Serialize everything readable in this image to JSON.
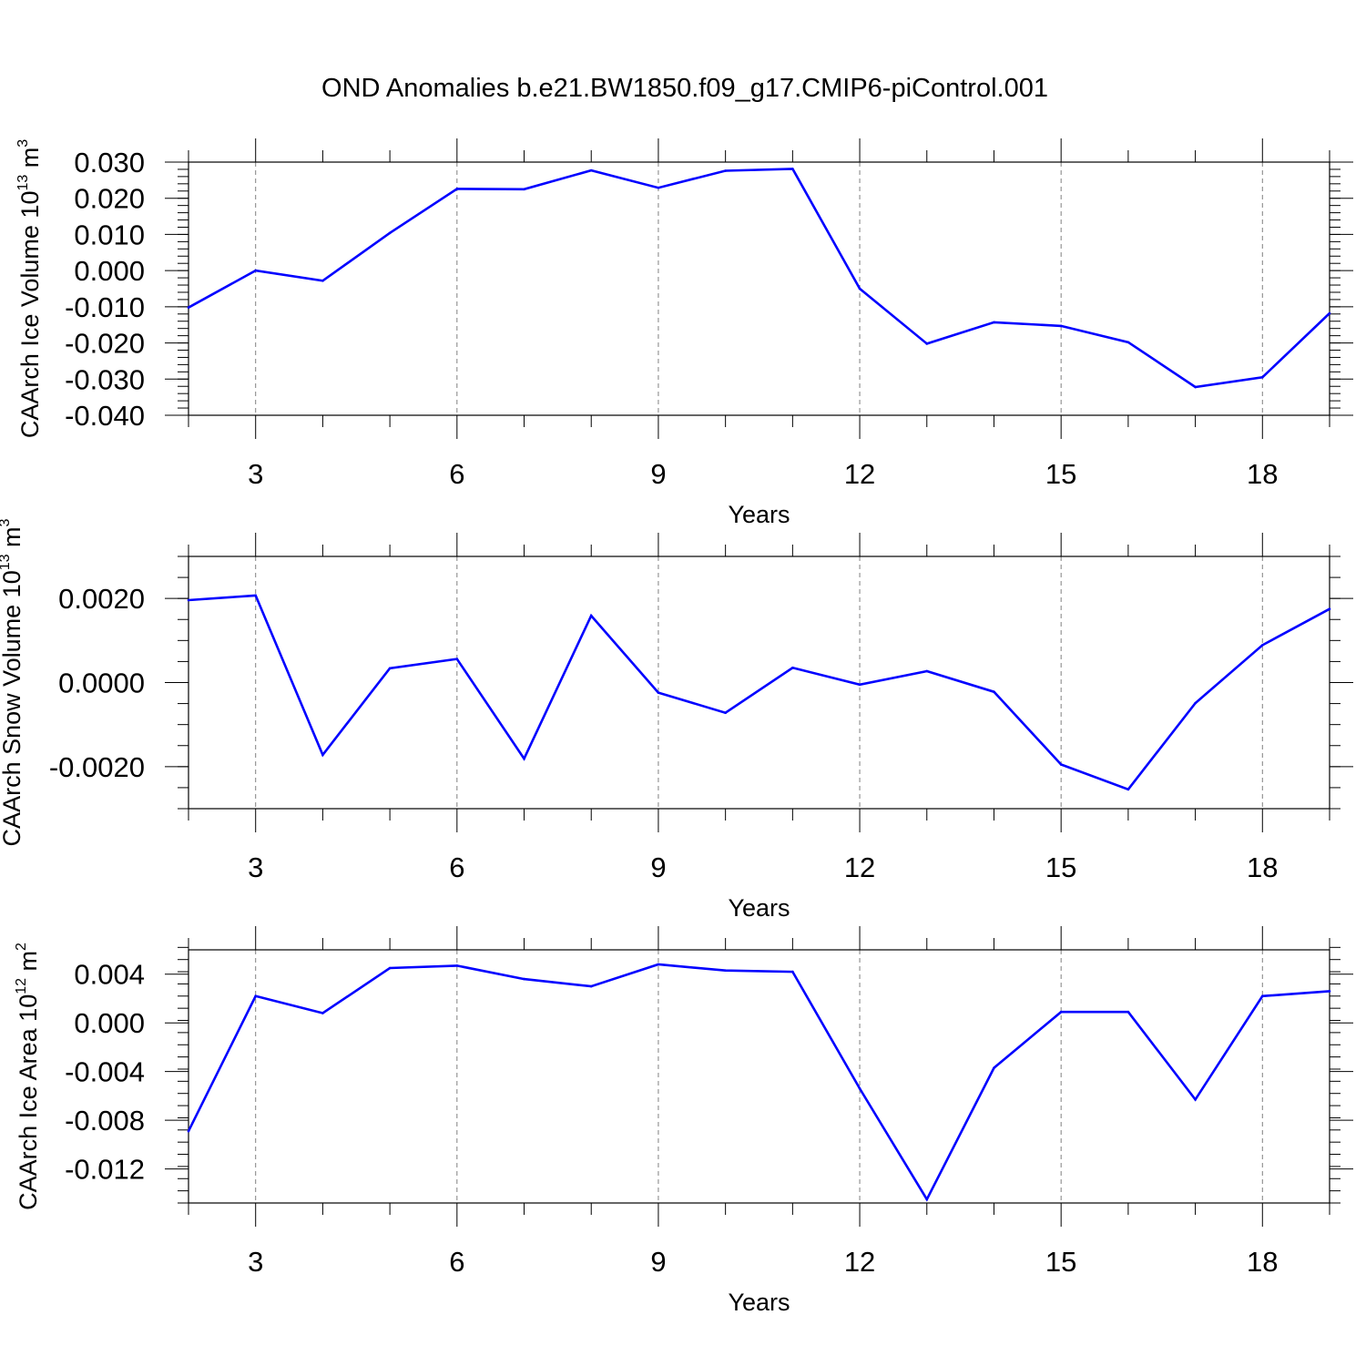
{
  "title": "OND Anomalies b.e21.BW1850.f09_g17.CMIP6-piControl.001",
  "colors": {
    "line": "#0000ff",
    "axis": "#000000",
    "grid": "#808080"
  },
  "chart_data": [
    {
      "type": "line",
      "panel": "ice-volume",
      "xlabel": "Years",
      "ylabel": {
        "text": "CAArch Ice Volume 10",
        "exponent": "13",
        "unit": " m",
        "unit_exponent": "3"
      },
      "xlim": [
        2,
        19
      ],
      "ylim": [
        -0.04,
        0.03
      ],
      "xticks": [
        3,
        6,
        9,
        12,
        15,
        18
      ],
      "xtick_labels": [
        "3",
        "6",
        "9",
        "12",
        "15",
        "18"
      ],
      "yticks": [
        -0.04,
        -0.03,
        -0.02,
        -0.01,
        0.0,
        0.01,
        0.02,
        0.03
      ],
      "ytick_labels": [
        "-0.040",
        "-0.030",
        "-0.020",
        "-0.010",
        "0.000",
        "0.010",
        "0.020",
        "0.030"
      ],
      "yminor_step": 0.002,
      "x": [
        2,
        3,
        4,
        5,
        6,
        7,
        8,
        9,
        10,
        11,
        12,
        13,
        14,
        15,
        16,
        17,
        18,
        19
      ],
      "values": [
        -0.0102,
        0.0,
        -0.0028,
        0.0104,
        0.0226,
        0.0225,
        0.0277,
        0.0229,
        0.0276,
        0.0281,
        -0.005,
        -0.0202,
        -0.0143,
        -0.0153,
        -0.0198,
        -0.0322,
        -0.0295,
        -0.0118
      ]
    },
    {
      "type": "line",
      "panel": "snow-volume",
      "xlabel": "Years",
      "ylabel": {
        "text": "CAArch Snow Volume 10",
        "exponent": "13",
        "unit": " m",
        "unit_exponent": "3"
      },
      "xlim": [
        2,
        19
      ],
      "ylim": [
        -0.003,
        0.003
      ],
      "xticks": [
        3,
        6,
        9,
        12,
        15,
        18
      ],
      "xtick_labels": [
        "3",
        "6",
        "9",
        "12",
        "15",
        "18"
      ],
      "yticks": [
        -0.002,
        0.0,
        0.002
      ],
      "ytick_labels": [
        "-0.0020",
        "0.0000",
        "0.0020"
      ],
      "yminor_step": 0.0005,
      "x": [
        2,
        3,
        4,
        5,
        6,
        7,
        8,
        9,
        10,
        11,
        12,
        13,
        14,
        15,
        16,
        17,
        18,
        19
      ],
      "values": [
        0.00196,
        0.00207,
        -0.00172,
        0.00034,
        0.00056,
        -0.00181,
        0.00159,
        -0.00024,
        -0.00072,
        0.00035,
        -5e-05,
        0.00027,
        -0.00022,
        -0.00195,
        -0.00254,
        -0.00049,
        0.00089,
        0.00175
      ]
    },
    {
      "type": "line",
      "panel": "ice-area",
      "xlabel": "Years",
      "ylabel": {
        "text": "CAArch Ice Area 10",
        "exponent": "12",
        "unit": " m",
        "unit_exponent": "2"
      },
      "xlim": [
        2,
        19
      ],
      "ylim": [
        -0.0148,
        0.006
      ],
      "xticks": [
        3,
        6,
        9,
        12,
        15,
        18
      ],
      "xtick_labels": [
        "3",
        "6",
        "9",
        "12",
        "15",
        "18"
      ],
      "yticks": [
        -0.012,
        -0.008,
        -0.004,
        0.0,
        0.004
      ],
      "ytick_labels": [
        "-0.012",
        "-0.008",
        "-0.004",
        "0.000",
        "0.004"
      ],
      "yminor_step": 0.001,
      "x": [
        2,
        3,
        4,
        5,
        6,
        7,
        8,
        9,
        10,
        11,
        12,
        13,
        14,
        15,
        16,
        17,
        18,
        19
      ],
      "values": [
        -0.0089,
        0.0022,
        0.0008,
        0.0045,
        0.0047,
        0.0036,
        0.003,
        0.0048,
        0.0043,
        0.0042,
        -0.0054,
        -0.0145,
        -0.0037,
        0.0009,
        0.0009,
        -0.0063,
        0.0022,
        0.0026
      ]
    }
  ]
}
